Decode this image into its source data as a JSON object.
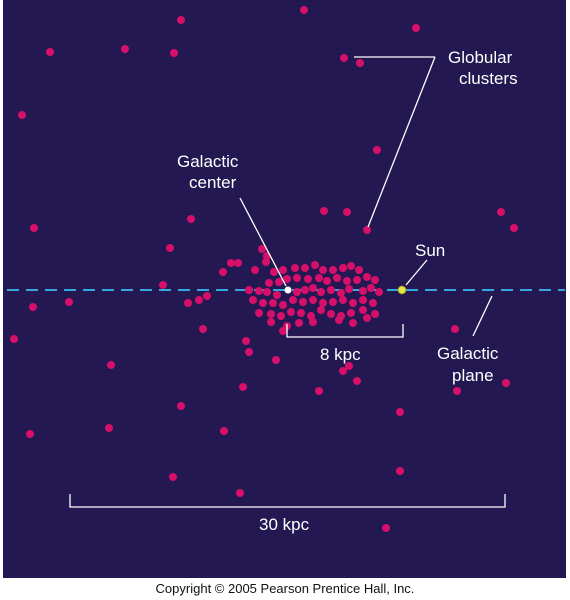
{
  "labels": {
    "globular_line1": "Globular",
    "globular_line2": "clusters",
    "center_line1": "Galactic",
    "center_line2": "center",
    "sun": "Sun",
    "plane_line1": "Galactic",
    "plane_line2": "plane",
    "scale_small": "8 kpc",
    "scale_large": "30 kpc"
  },
  "copyright": "Copyright © 2005 Pearson Prentice Hall, Inc.",
  "colors": {
    "background": "#241852",
    "cluster": "#d6106a",
    "galactic_center": "#ffffff",
    "sun": "#e8e24a",
    "plane": "#35a8e0",
    "annotation": "#ffffff"
  }
}
